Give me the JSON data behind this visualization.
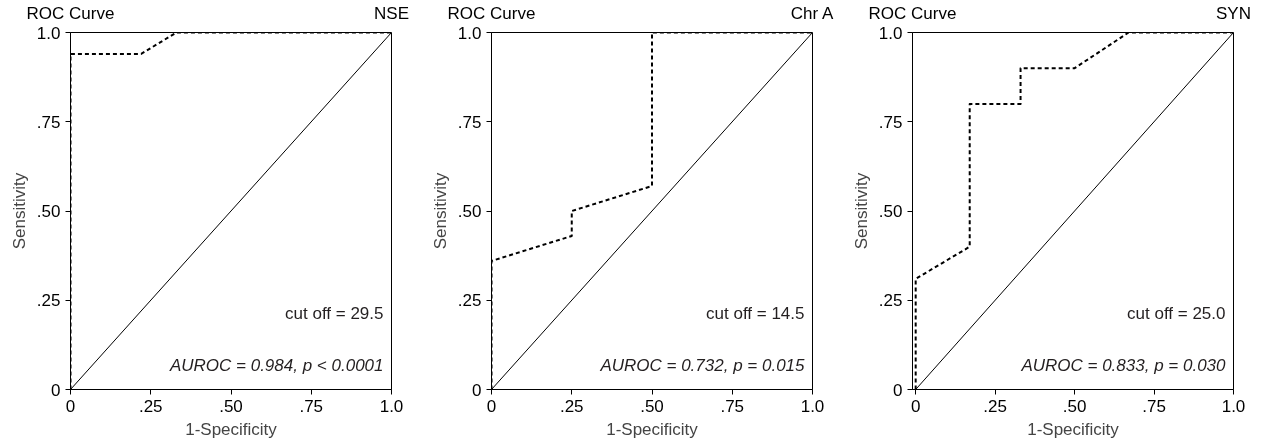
{
  "chart_data": [
    {
      "type": "line",
      "title": "ROC Curve",
      "subtitle": "NSE",
      "xlabel": "1-Specificity",
      "ylabel": "Sensitivity",
      "xlim": [
        0,
        1
      ],
      "ylim": [
        0,
        1
      ],
      "xticks": [
        {
          "value": 0,
          "label": "0"
        },
        {
          "value": 0.25,
          "label": ".25"
        },
        {
          "value": 0.5,
          "label": ".50"
        },
        {
          "value": 0.75,
          "label": ".75"
        },
        {
          "value": 1,
          "label": "1.0"
        }
      ],
      "yticks": [
        {
          "value": 0,
          "label": "0"
        },
        {
          "value": 0.25,
          "label": ".25"
        },
        {
          "value": 0.5,
          "label": ".50"
        },
        {
          "value": 0.75,
          "label": ".75"
        },
        {
          "value": 1,
          "label": "1.0"
        }
      ],
      "series": [
        {
          "color": "#000000",
          "line_style": "dashed",
          "x": [
            0,
            0,
            0.22,
            0.33,
            1
          ],
          "values": [
            0,
            0.94,
            0.94,
            1,
            1
          ]
        },
        {
          "color": "#000000",
          "line_style": "solid",
          "x": [
            0,
            1
          ],
          "values": [
            0,
            1
          ]
        }
      ],
      "annotations": [
        "cut off = 29.5",
        "AUROC = 0.984, p < 0.0001"
      ],
      "grid": false
    },
    {
      "type": "line",
      "title": "ROC Curve",
      "subtitle": "Chr A",
      "xlabel": "1-Specificity",
      "ylabel": "Sensitivity",
      "xlim": [
        0,
        1
      ],
      "ylim": [
        0,
        1
      ],
      "xticks": [
        {
          "value": 0,
          "label": "0"
        },
        {
          "value": 0.25,
          "label": ".25"
        },
        {
          "value": 0.5,
          "label": ".50"
        },
        {
          "value": 0.75,
          "label": ".75"
        },
        {
          "value": 1,
          "label": "1.0"
        }
      ],
      "yticks": [
        {
          "value": 0,
          "label": "0"
        },
        {
          "value": 0.25,
          "label": ".25"
        },
        {
          "value": 0.5,
          "label": ".50"
        },
        {
          "value": 0.75,
          "label": ".75"
        },
        {
          "value": 1,
          "label": "1.0"
        }
      ],
      "series": [
        {
          "color": "#000000",
          "line_style": "dashed",
          "x": [
            0,
            0,
            0.25,
            0.25,
            0.5,
            0.5,
            1
          ],
          "values": [
            0,
            0.36,
            0.43,
            0.5,
            0.57,
            1,
            1
          ]
        },
        {
          "color": "#000000",
          "line_style": "solid",
          "x": [
            0,
            1
          ],
          "values": [
            0,
            1
          ]
        }
      ],
      "annotations": [
        "cut off = 14.5",
        "AUROC = 0.732, p = 0.015"
      ],
      "grid": false
    },
    {
      "type": "line",
      "title": "ROC Curve",
      "subtitle": "SYN",
      "xlabel": "1-Specificity",
      "ylabel": "Sensitivity",
      "xlim": [
        -0.01,
        1
      ],
      "ylim": [
        0,
        1
      ],
      "xticks": [
        {
          "value": 0,
          "label": "0"
        },
        {
          "value": 0.25,
          "label": ".25"
        },
        {
          "value": 0.5,
          "label": ".50"
        },
        {
          "value": 0.75,
          "label": ".75"
        },
        {
          "value": 1,
          "label": "1.0"
        }
      ],
      "yticks": [
        {
          "value": 0,
          "label": "0"
        },
        {
          "value": 0.25,
          "label": ".25"
        },
        {
          "value": 0.5,
          "label": ".50"
        },
        {
          "value": 0.75,
          "label": ".75"
        },
        {
          "value": 1,
          "label": "1.0"
        }
      ],
      "series": [
        {
          "color": "#000000",
          "line_style": "dashed",
          "x": [
            0,
            0,
            0.17,
            0.17,
            0.33,
            0.33,
            0.5,
            0.67,
            1
          ],
          "values": [
            0,
            0.31,
            0.4,
            0.8,
            0.8,
            0.9,
            0.9,
            1,
            1
          ]
        },
        {
          "color": "#000000",
          "line_style": "solid",
          "x": [
            0,
            1
          ],
          "values": [
            0,
            1
          ]
        }
      ],
      "annotations": [
        "cut off = 25.0",
        "AUROC = 0.833, p = 0.030"
      ],
      "grid": false
    }
  ]
}
